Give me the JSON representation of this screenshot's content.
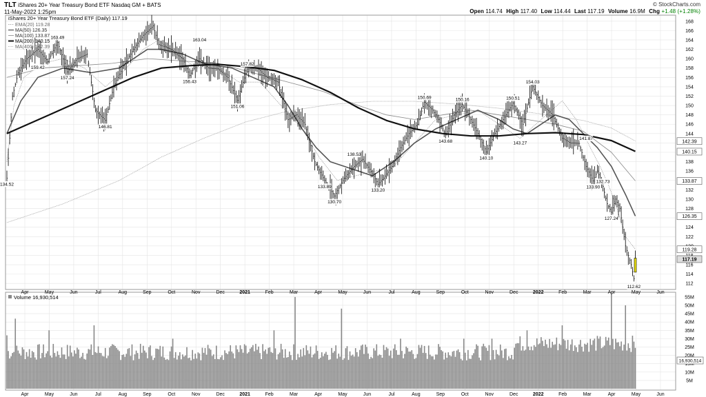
{
  "header": {
    "symbol": "TLT",
    "name": "iShares 20+ Year Treasury Bond ETF",
    "exchange": "Nasdaq GM + BATS",
    "date": "11-May-2022 1:25pm",
    "brand": "© StockCharts.com",
    "quote": {
      "open_label": "Open",
      "open": "114.74",
      "high_label": "High",
      "high": "117.40",
      "low_label": "Low",
      "low": "114.44",
      "last_label": "Last",
      "last": "117.19",
      "volume_label": "Volume",
      "volume": "16.9M",
      "chg_label": "Chg",
      "chg": "+1.48 (+1.28%)"
    }
  },
  "colors": {
    "price": "#000000",
    "ma50": "#555555",
    "ma200": "#111111",
    "ma100": "#888888",
    "volume_bar": "#888888",
    "last_highlight": "#f2e600",
    "grid": "#e4e4e4"
  },
  "chart_data": {
    "type": "line",
    "title": "iShares 20+ Year Treasury Bond ETF (Daily) 117.19",
    "legend": {
      "placement": "top-left",
      "entries": [
        "iShares 20+ Year Treasury Bond ETF (Daily) 117.19",
        "EMA(20) 119.28",
        "MA(50) 126.35",
        "MA(100) 133.87",
        "MA(200) 140.15",
        "MA(400) 142.39"
      ]
    },
    "x_tick_labels": [
      "Apr",
      "May",
      "Jun",
      "Jul",
      "Aug",
      "Sep",
      "Oct",
      "Nov",
      "Dec",
      "2021",
      "Feb",
      "Mar",
      "Apr",
      "May",
      "Jun",
      "Jul",
      "Aug",
      "Sep",
      "Oct",
      "Nov",
      "Dec",
      "2022",
      "Feb",
      "Mar",
      "Apr",
      "May",
      "Jun"
    ],
    "y_tick_labels": [
      "112",
      "114",
      "116",
      "118",
      "120",
      "122",
      "124",
      "126",
      "128",
      "130",
      "132",
      "134",
      "136",
      "138",
      "140",
      "142",
      "144",
      "146",
      "148",
      "150",
      "152",
      "154",
      "156",
      "158",
      "160",
      "162",
      "164",
      "166",
      "168"
    ],
    "ylim": [
      111,
      169
    ],
    "grid": true,
    "price_x": [
      0,
      2,
      4,
      8,
      14,
      22,
      29,
      36,
      43,
      50,
      57,
      63,
      70,
      76,
      82,
      90,
      97,
      104,
      108,
      117,
      125,
      130,
      137,
      143,
      150,
      157,
      164,
      171,
      178,
      185,
      193,
      200,
      206,
      212,
      219,
      226,
      233,
      240,
      247,
      253,
      259,
      264,
      268,
      274,
      280,
      286,
      292,
      297,
      303,
      307,
      312,
      318,
      324,
      330,
      335,
      341,
      347,
      353,
      360,
      367,
      374,
      381,
      388,
      395,
      401,
      407,
      412,
      417,
      420,
      424,
      427,
      430,
      433,
      436,
      438,
      440,
      442,
      444,
      446,
      447
    ],
    "price": [
      134.5,
      143,
      152,
      157,
      160,
      162,
      159.4,
      163.5,
      157.2,
      160,
      161,
      149,
      146.8,
      154,
      158,
      162,
      165,
      167,
      163,
      162,
      160,
      156.4,
      160,
      158,
      157.8,
      156,
      151.1,
      157.8,
      158,
      156,
      155,
      147,
      148,
      146,
      138,
      134,
      130.7,
      134.5,
      137,
      138.5,
      136,
      133.2,
      134.5,
      137,
      141,
      144,
      146,
      150.7,
      149,
      147,
      143.7,
      148,
      150.2,
      147,
      144,
      140.1,
      144,
      147,
      150.5,
      146,
      154,
      150,
      148,
      143,
      142,
      141.9,
      137,
      133.9,
      136,
      132.7,
      129,
      127.2,
      130,
      128,
      124,
      120,
      118,
      116,
      113,
      117.2
    ],
    "ema20_x": [
      0,
      5,
      12,
      25,
      40,
      55,
      70,
      82,
      97,
      108,
      120,
      135,
      150,
      165,
      180,
      195,
      210,
      222,
      235,
      248,
      262,
      275,
      290,
      305,
      320,
      335,
      350,
      365,
      380,
      395,
      405,
      415,
      422,
      428,
      434,
      440,
      447
    ],
    "ema20": [
      138,
      150,
      156,
      159,
      160,
      158,
      154,
      157,
      162,
      164,
      161,
      158,
      158,
      155,
      155,
      150,
      145,
      139,
      134,
      135,
      136,
      137,
      142,
      147,
      148,
      149,
      146,
      143,
      147,
      151,
      147,
      141,
      137,
      133,
      128,
      122,
      119.3
    ],
    "ma50_x": [
      0,
      10,
      22,
      40,
      60,
      80,
      100,
      110,
      125,
      140,
      160,
      175,
      190,
      200,
      210,
      220,
      230,
      240,
      260,
      275,
      290,
      305,
      320,
      335,
      350,
      360,
      370,
      380,
      390,
      400,
      410,
      420,
      430,
      440,
      447
    ],
    "ma50": [
      144,
      151,
      156,
      158,
      157,
      158,
      162,
      162,
      161,
      159,
      158,
      156,
      154,
      150,
      145,
      141,
      138,
      137,
      135,
      138,
      142,
      145,
      147,
      149,
      147,
      145,
      144,
      146,
      148,
      147,
      144,
      141,
      137,
      131,
      126.4
    ],
    "ma100_x": [
      0,
      25,
      50,
      75,
      100,
      125,
      150,
      175,
      200,
      225,
      250,
      270,
      290,
      310,
      330,
      350,
      370,
      390,
      410,
      430,
      447
    ],
    "ma100": [
      156,
      158,
      158.5,
      159,
      160,
      159.5,
      159,
      157,
      155,
      153,
      150,
      148,
      147,
      148,
      149,
      148,
      147,
      146,
      144.5,
      140,
      133.9
    ],
    "ma200_x": [
      0,
      30,
      60,
      90,
      110,
      130,
      150,
      170,
      190,
      210,
      230,
      250,
      270,
      290,
      310,
      330,
      350,
      370,
      390,
      410,
      430,
      447
    ],
    "ma200": [
      144,
      148,
      152,
      156,
      158,
      158.5,
      158.8,
      158.3,
      157.5,
      155.5,
      152.8,
      149.5,
      146.8,
      145,
      144,
      143.5,
      143.5,
      144,
      144.2,
      143.8,
      142.5,
      140.2
    ],
    "ma400_x": [
      0,
      40,
      80,
      110,
      140,
      170,
      200,
      230,
      260,
      290,
      320,
      350,
      380,
      410,
      430,
      447
    ],
    "ma400": [
      125,
      129,
      134,
      139,
      143,
      146.5,
      148.8,
      150.2,
      150.9,
      150.9,
      150.3,
      149.4,
      148.2,
      146.8,
      145.2,
      142.4
    ],
    "annotations": [
      {
        "x": 0,
        "y": 134.5,
        "label": "134.52",
        "pos": "below"
      },
      {
        "x": 22,
        "y": 159.4,
        "label": "159.42",
        "pos": "below"
      },
      {
        "x": 36,
        "y": 163.5,
        "label": "163.49",
        "pos": "above"
      },
      {
        "x": 43,
        "y": 157.2,
        "label": "157.24",
        "pos": "below"
      },
      {
        "x": 70,
        "y": 146.8,
        "label": "146.81",
        "pos": "below"
      },
      {
        "x": 130,
        "y": 156.4,
        "label": "156.43",
        "pos": "below"
      },
      {
        "x": 137,
        "y": 163,
        "label": "163.04",
        "pos": "above"
      },
      {
        "x": 164,
        "y": 151.1,
        "label": "151.06",
        "pos": "below"
      },
      {
        "x": 171,
        "y": 157.8,
        "label": "157.82",
        "pos": "above"
      },
      {
        "x": 226,
        "y": 134,
        "label": "133.89",
        "pos": "below"
      },
      {
        "x": 233,
        "y": 130.7,
        "label": "130.70",
        "pos": "below"
      },
      {
        "x": 247,
        "y": 138.5,
        "label": "138.53",
        "pos": "above"
      },
      {
        "x": 264,
        "y": 133.2,
        "label": "133.20",
        "pos": "below"
      },
      {
        "x": 297,
        "y": 150.7,
        "label": "150.69",
        "pos": "above"
      },
      {
        "x": 312,
        "y": 143.7,
        "label": "143.68",
        "pos": "below"
      },
      {
        "x": 324,
        "y": 150.2,
        "label": "150.16",
        "pos": "above"
      },
      {
        "x": 341,
        "y": 140.1,
        "label": "140.10",
        "pos": "below"
      },
      {
        "x": 360,
        "y": 150.5,
        "label": "150.51",
        "pos": "above"
      },
      {
        "x": 365,
        "y": 143.3,
        "label": "143.27",
        "pos": "below"
      },
      {
        "x": 374,
        "y": 154,
        "label": "154.03",
        "pos": "above"
      },
      {
        "x": 417,
        "y": 133.9,
        "label": "133.90",
        "pos": "below"
      },
      {
        "x": 412,
        "y": 141.9,
        "label": "141.87",
        "pos": "above"
      },
      {
        "x": 424,
        "y": 132.7,
        "label": "132.73",
        "pos": "above"
      },
      {
        "x": 430,
        "y": 127.2,
        "label": "127.24",
        "pos": "below"
      },
      {
        "x": 446,
        "y": 112.6,
        "label": "112.62",
        "pos": "below"
      }
    ],
    "right_badges": [
      {
        "value": 142.39,
        "label": "142.39",
        "fill": "#ffffff"
      },
      {
        "value": 140.15,
        "label": "140.15",
        "fill": "#ffffff"
      },
      {
        "value": 133.87,
        "label": "133.87",
        "fill": "#ffffff"
      },
      {
        "value": 126.35,
        "label": "126.35",
        "fill": "#ffffff"
      },
      {
        "value": 119.28,
        "label": "119.28",
        "fill": "#ffffff"
      },
      {
        "value": 117.19,
        "label": "117.19",
        "fill": "#dddddd"
      }
    ],
    "volume": {
      "label": "Volume 16,930,514",
      "y_tick_labels": [
        "5M",
        "10M",
        "15M",
        "20M",
        "25M",
        "30M",
        "35M",
        "40M",
        "45M",
        "50M",
        "55M"
      ],
      "ylim": [
        0,
        57
      ],
      "badge": "16,930,514",
      "spike_x": [
        0,
        6,
        30,
        62,
        118,
        190,
        205,
        238,
        280,
        325,
        345,
        370,
        395,
        418,
        430,
        440
      ],
      "spike_v": [
        32,
        42,
        35,
        38,
        30,
        35,
        55,
        48,
        30,
        30,
        30,
        35,
        38,
        30,
        57,
        50
      ]
    }
  }
}
